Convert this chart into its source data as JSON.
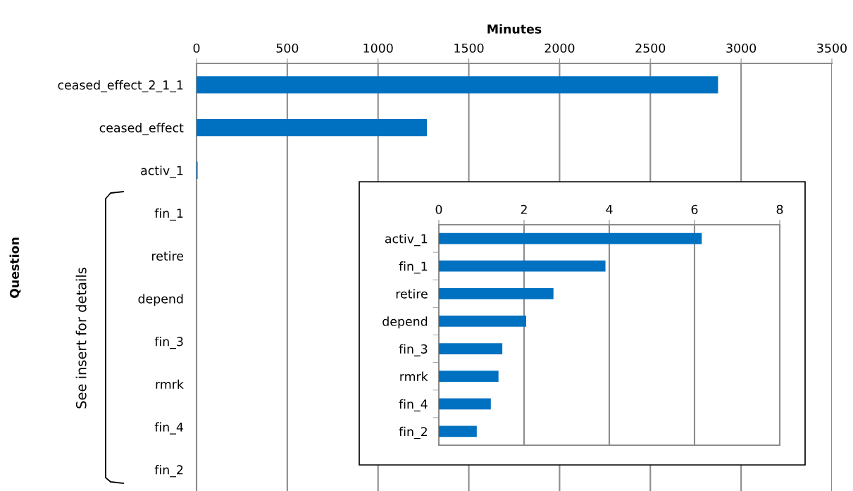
{
  "chart_data": [
    {
      "type": "bar",
      "orientation": "horizontal",
      "xlabel": "Minutes",
      "ylabel": "Question",
      "categories": [
        "ceased_effect_2_1_1",
        "ceased_effect",
        "activ_1",
        "fin_1",
        "retire",
        "depend",
        "fin_3",
        "rmrk",
        "fin_4",
        "fin_2"
      ],
      "values": [
        2873,
        1269,
        6,
        null,
        null,
        null,
        null,
        null,
        null,
        null
      ],
      "color": "#0070c0",
      "xlim": [
        0,
        3500
      ],
      "xticks": [
        0,
        500,
        1000,
        1500,
        2000,
        2500,
        3000,
        3500
      ],
      "grid": "x",
      "annotations": [
        "See insert for details"
      ]
    },
    {
      "type": "bar",
      "orientation": "horizontal",
      "categories": [
        "activ_1",
        "fin_1",
        "retire",
        "depend",
        "fin_3",
        "rmrk",
        "fin_4",
        "fin_2"
      ],
      "values": [
        6.17,
        3.91,
        2.69,
        2.05,
        1.49,
        1.4,
        1.22,
        0.89
      ],
      "color": "#0070c0",
      "xlim": [
        0,
        8
      ],
      "xticks": [
        0,
        2,
        4,
        6,
        8
      ],
      "grid": "x"
    }
  ]
}
